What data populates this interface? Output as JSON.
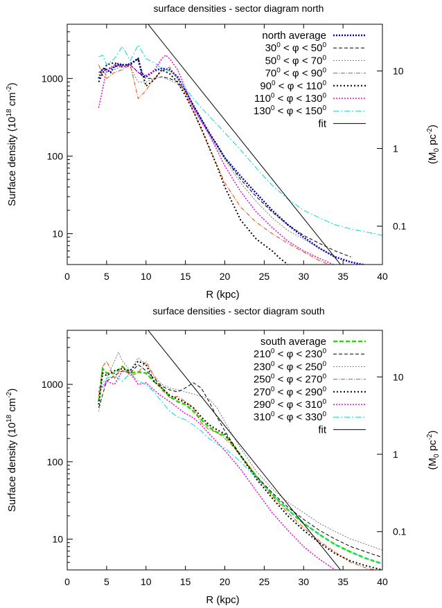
{
  "chart_data": [
    {
      "type": "line",
      "title": "surface densities - sector diagram north",
      "xlabel": "R (kpc)",
      "ylabel": "Surface density (10",
      "ylabel_sup": "18",
      "ylabel_unit": " cm",
      "ylabel_unit_sup": "-2",
      "ylabel_close": ")",
      "y2label": "(M",
      "y2label_sub": "0",
      "y2label_unit": " pc",
      "y2label_unit_sup": "-2",
      "y2label_close": ")",
      "xlim": [
        0,
        40
      ],
      "ylim": [
        4,
        5000
      ],
      "yscale": "log",
      "xticks": [
        "0",
        "5",
        "10",
        "15",
        "20",
        "25",
        "30",
        "35",
        "40"
      ],
      "yticks": [
        {
          "value": 10,
          "label": "10"
        },
        {
          "value": 100,
          "label": "100"
        },
        {
          "value": 1000,
          "label": "1000"
        }
      ],
      "y2ticks": [
        {
          "value": 12.5,
          "label": "0.1"
        },
        {
          "value": 125,
          "label": "1"
        },
        {
          "value": 1250,
          "label": "10"
        }
      ],
      "grid": false,
      "legend_position": "top-right",
      "legend": [
        {
          "pre": "north average"
        },
        {
          "pre": "30",
          "s1": "0",
          "mid": " < φ < 50",
          "s2": "0"
        },
        {
          "pre": "50",
          "s1": "0",
          "mid": " < φ < 70",
          "s2": "0"
        },
        {
          "pre": "70",
          "s1": "0",
          "mid": " < φ < 90",
          "s2": "0"
        },
        {
          "pre": "90",
          "s1": "0",
          "mid": " < φ < 110",
          "s2": "0"
        },
        {
          "pre": "110",
          "s1": "0",
          "mid": " < φ < 130",
          "s2": "0"
        },
        {
          "pre": "130",
          "s1": "0",
          "mid": " < φ < 150",
          "s2": "0"
        },
        {
          "pre": "fit"
        }
      ],
      "series": [
        {
          "color": "#0000dd",
          "dash": "2,2",
          "width": 2.6,
          "x": [
            4,
            4.5,
            5,
            5.5,
            6,
            6.5,
            7,
            7.5,
            8,
            9,
            9.5,
            10,
            11,
            12,
            13,
            14,
            15,
            16,
            17,
            18,
            19,
            20,
            22,
            24,
            26,
            28,
            30,
            32,
            34,
            36,
            38,
            40
          ],
          "y": [
            1000,
            1350,
            1300,
            1200,
            1450,
            1550,
            1500,
            1500,
            1550,
            1800,
            1100,
            1050,
            1250,
            1350,
            1300,
            1050,
            700,
            450,
            300,
            200,
            140,
            95,
            55,
            33,
            20,
            13,
            9,
            6.5,
            5,
            4.3,
            3.9,
            3.6
          ]
        },
        {
          "color": "#000000",
          "dash": "5,3",
          "width": 1,
          "x": [
            4,
            5,
            6,
            7,
            8,
            9,
            10,
            11,
            12,
            13,
            14,
            15,
            16,
            17,
            18,
            20,
            22,
            24,
            26,
            28,
            30,
            32,
            34,
            36
          ],
          "y": [
            1200,
            1300,
            1400,
            1500,
            1500,
            1200,
            1000,
            1000,
            1050,
            1000,
            900,
            700,
            450,
            300,
            200,
            95,
            50,
            30,
            19,
            13,
            9.5,
            7.5,
            6,
            5
          ]
        },
        {
          "color": "#777777",
          "dash": "2,2",
          "width": 1,
          "x": [
            4,
            5,
            6,
            7,
            8,
            9,
            10,
            11,
            12,
            13,
            14,
            15,
            16,
            17,
            18,
            20,
            22,
            24,
            26,
            28,
            30,
            32,
            34
          ],
          "y": [
            1100,
            1200,
            1300,
            1450,
            1400,
            900,
            900,
            1000,
            1050,
            950,
            850,
            650,
            420,
            280,
            190,
            90,
            45,
            26,
            16,
            11,
            8.5,
            6.5,
            5
          ]
        },
        {
          "color": "#ee4400",
          "dash": "6,2,1,2",
          "width": 1,
          "x": [
            4,
            4.5,
            5,
            6,
            7,
            8,
            9,
            10,
            11,
            12,
            13,
            14,
            15,
            16,
            17,
            18,
            20,
            22,
            24,
            26,
            28,
            30,
            32,
            34
          ],
          "y": [
            1500,
            1100,
            1000,
            1200,
            1300,
            1500,
            550,
            700,
            1000,
            1250,
            1400,
            1000,
            650,
            380,
            220,
            130,
            45,
            22,
            14,
            10,
            7.5,
            5.8,
            4.5,
            3.7
          ]
        },
        {
          "color": "#000000",
          "dash": "2,3",
          "width": 2,
          "x": [
            4,
            5,
            6,
            7,
            8,
            9,
            10,
            11,
            12,
            13,
            14,
            15,
            16,
            17,
            18,
            19,
            20,
            22,
            24,
            26,
            27,
            28
          ],
          "y": [
            900,
            1500,
            1600,
            1400,
            1500,
            1800,
            800,
            950,
            1300,
            1150,
            900,
            600,
            380,
            230,
            130,
            75,
            40,
            15,
            8.5,
            6,
            4.8,
            4
          ]
        },
        {
          "color": "#ee00ee",
          "dash": "2,2",
          "width": 1.5,
          "x": [
            4,
            5,
            6,
            7,
            8,
            9,
            10,
            11,
            12,
            12.5,
            13,
            14,
            15,
            16,
            17,
            18,
            20,
            22,
            24,
            26,
            28,
            30,
            32,
            34
          ],
          "y": [
            420,
            1300,
            1500,
            1400,
            1500,
            1200,
            1100,
            1250,
            1800,
            2000,
            1800,
            1300,
            750,
            420,
            280,
            190,
            75,
            35,
            19,
            12,
            8,
            6,
            4.8,
            3.9
          ]
        },
        {
          "color": "#00dddd",
          "dash": "8,3,2,3",
          "width": 1,
          "x": [
            4,
            4.5,
            5,
            6,
            7,
            8,
            9,
            10,
            11,
            12,
            13,
            14,
            15,
            16,
            17,
            18,
            20,
            22,
            24,
            26,
            28,
            30,
            32,
            34,
            36,
            38,
            40
          ],
          "y": [
            1900,
            2000,
            1500,
            1800,
            2600,
            1700,
            2700,
            1800,
            1600,
            1350,
            1250,
            1000,
            750,
            550,
            420,
            330,
            200,
            120,
            70,
            42,
            28,
            20,
            16,
            13,
            11.5,
            10.5,
            9.5
          ]
        },
        {
          "color": "#000000",
          "dash": "",
          "width": 1,
          "x": [
            0,
            40
          ],
          "y": [
            100000,
            0.85
          ]
        }
      ]
    },
    {
      "type": "line",
      "title": "surface densities - sector diagram south",
      "xlabel": "R (kpc)",
      "ylabel": "Surface density (10",
      "ylabel_sup": "18",
      "ylabel_unit": " cm",
      "ylabel_unit_sup": "-2",
      "ylabel_close": ")",
      "y2label": "(M",
      "y2label_sub": "0",
      "y2label_unit": " pc",
      "y2label_unit_sup": "-2",
      "y2label_close": ")",
      "xlim": [
        0,
        40
      ],
      "ylim": [
        4,
        5000
      ],
      "yscale": "log",
      "xticks": [
        "0",
        "5",
        "10",
        "15",
        "20",
        "25",
        "30",
        "35",
        "40"
      ],
      "yticks": [
        {
          "value": 10,
          "label": "10"
        },
        {
          "value": 100,
          "label": "100"
        },
        {
          "value": 1000,
          "label": "1000"
        }
      ],
      "y2ticks": [
        {
          "value": 12.5,
          "label": "0.1"
        },
        {
          "value": 125,
          "label": "1"
        },
        {
          "value": 1250,
          "label": "10"
        }
      ],
      "grid": false,
      "legend_position": "top-right",
      "legend": [
        {
          "pre": "south average"
        },
        {
          "pre": "210",
          "s1": "0",
          "mid": " < φ < 230",
          "s2": "0"
        },
        {
          "pre": "230",
          "s1": "0",
          "mid": " < φ < 250",
          "s2": "0"
        },
        {
          "pre": "250",
          "s1": "0",
          "mid": " < φ < 270",
          "s2": "0"
        },
        {
          "pre": "270",
          "s1": "0",
          "mid": " < φ < 290",
          "s2": "0"
        },
        {
          "pre": "290",
          "s1": "0",
          "mid": " < φ < 310",
          "s2": "0"
        },
        {
          "pre": "310",
          "s1": "0",
          "mid": " < φ < 330",
          "s2": "0"
        },
        {
          "pre": "fit"
        }
      ],
      "series": [
        {
          "color": "#22dd00",
          "dash": "6,3",
          "width": 2.6,
          "x": [
            4,
            4.5,
            5,
            6,
            7,
            8,
            9,
            10,
            11,
            12,
            13,
            14,
            15,
            16,
            17,
            18,
            19,
            20,
            21,
            22,
            24,
            26,
            28,
            30,
            32,
            34,
            36,
            38,
            40
          ],
          "y": [
            600,
            1600,
            1400,
            1400,
            1700,
            1400,
            1450,
            1400,
            1100,
            900,
            700,
            600,
            550,
            450,
            350,
            280,
            240,
            220,
            170,
            120,
            65,
            38,
            24,
            16,
            11.5,
            8.5,
            6.8,
            5.6,
            4.8
          ]
        },
        {
          "color": "#000000",
          "dash": "5,3",
          "width": 1,
          "x": [
            4,
            5,
            6,
            7,
            8,
            9,
            10,
            11,
            12,
            13,
            14,
            15,
            16,
            17,
            18,
            19,
            20,
            22,
            24,
            26,
            28,
            30,
            32,
            34,
            36,
            38,
            40
          ],
          "y": [
            500,
            1100,
            1300,
            1500,
            1400,
            1800,
            1500,
            1200,
            950,
            850,
            800,
            900,
            1050,
            900,
            600,
            380,
            250,
            120,
            65,
            40,
            26,
            18,
            13,
            10,
            8,
            6.8,
            5.8
          ]
        },
        {
          "color": "#777777",
          "dash": "2,2",
          "width": 1,
          "x": [
            4,
            5,
            6,
            6.5,
            7,
            8,
            9,
            10,
            11,
            12,
            13,
            14,
            15,
            16,
            17,
            18,
            19,
            20,
            21,
            22,
            24,
            26,
            28,
            30,
            32,
            34,
            36,
            38,
            40
          ],
          "y": [
            450,
            1200,
            2000,
            2600,
            2000,
            1500,
            2200,
            1800,
            1300,
            1000,
            900,
            850,
            800,
            750,
            700,
            650,
            500,
            330,
            220,
            150,
            75,
            45,
            30,
            22,
            16,
            12.5,
            10,
            8.5,
            7.2
          ]
        },
        {
          "color": "#ee4400",
          "dash": "6,2,1,2",
          "width": 1,
          "x": [
            4,
            4.5,
            5,
            6,
            7,
            8,
            9,
            10,
            10.5,
            11,
            12,
            13,
            14,
            15,
            16,
            17,
            18,
            19,
            20,
            21,
            22,
            24,
            26,
            28,
            30,
            32,
            34,
            36,
            38,
            40
          ],
          "y": [
            700,
            1700,
            2000,
            1200,
            1700,
            1300,
            1400,
            2000,
            1600,
            1300,
            850,
            680,
            700,
            600,
            500,
            320,
            260,
            240,
            200,
            160,
            120,
            65,
            36,
            22,
            14,
            9.5,
            6.8,
            5,
            4.2,
            3.8
          ]
        },
        {
          "color": "#000000",
          "dash": "2,3",
          "width": 2,
          "x": [
            4,
            4.5,
            5,
            6,
            7,
            8,
            9,
            10,
            11,
            12,
            13,
            14,
            15,
            16,
            17,
            18,
            19,
            20,
            22,
            24,
            26,
            28,
            30,
            32,
            34,
            36,
            38,
            40
          ],
          "y": [
            550,
            1400,
            1300,
            1500,
            1600,
            1500,
            2000,
            1800,
            1100,
            900,
            720,
            650,
            580,
            500,
            380,
            300,
            260,
            230,
            120,
            60,
            34,
            20,
            13,
            9,
            6.5,
            5.2,
            4.5,
            4
          ]
        },
        {
          "color": "#ee00ee",
          "dash": "2,2",
          "width": 1.5,
          "x": [
            4,
            5,
            6,
            7,
            8,
            9,
            10,
            11,
            12,
            13,
            14,
            15,
            16,
            17,
            18,
            19,
            20,
            22,
            24,
            26,
            28,
            30,
            32,
            34
          ],
          "y": [
            800,
            1100,
            1000,
            1500,
            1400,
            1000,
            1050,
            850,
            700,
            600,
            500,
            420,
            370,
            300,
            230,
            180,
            140,
            80,
            42,
            22,
            13,
            8,
            5.5,
            4
          ]
        },
        {
          "color": "#00dddd",
          "dash": "8,3,2,3",
          "width": 1,
          "x": [
            4,
            5,
            6,
            7,
            8,
            9,
            10,
            11,
            12,
            13,
            14,
            15,
            16,
            17,
            18,
            19,
            20,
            22,
            24,
            26,
            28,
            30,
            32,
            34,
            36,
            38,
            40
          ],
          "y": [
            900,
            1200,
            1300,
            1100,
            1400,
            1100,
            1000,
            800,
            600,
            450,
            380,
            350,
            300,
            250,
            200,
            170,
            150,
            100,
            62,
            38,
            24,
            16,
            11.5,
            8.5,
            6.8,
            5.6,
            4.8
          ]
        },
        {
          "color": "#000000",
          "dash": "",
          "width": 1,
          "x": [
            0,
            40
          ],
          "y": [
            100000,
            0.85
          ]
        }
      ]
    }
  ]
}
